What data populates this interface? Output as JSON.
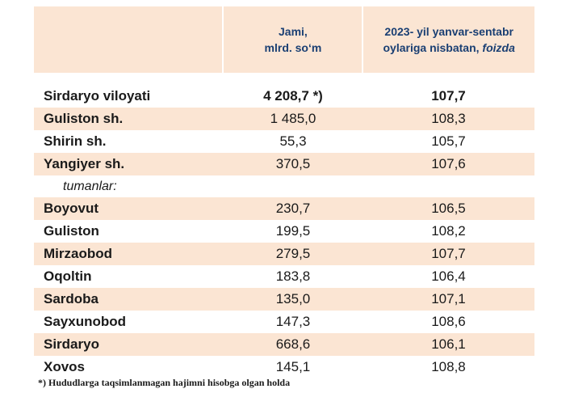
{
  "header": {
    "col2_line1": "Jami,",
    "col2_line2": "mlrd. so‘m",
    "col3_line1": "2023- yil yanvar-sentabr",
    "col3_line2_plain": "oylariga nisbatan, ",
    "col3_line2_italic": "foizda"
  },
  "rows": [
    {
      "name": "Sirdaryo viloyati",
      "total": "4 208,7 *)",
      "pct": "107,7"
    },
    {
      "name": "Guliston  sh.",
      "total": "1 485,0",
      "pct": "108,3"
    },
    {
      "name": "Shirin sh.",
      "total": "55,3",
      "pct": "105,7"
    },
    {
      "name": "Yangiyer sh.",
      "total": "370,5",
      "pct": "107,6"
    },
    {
      "name": "tumanlar:",
      "total": "",
      "pct": ""
    },
    {
      "name": "Boyovut",
      "total": "230,7",
      "pct": "106,5"
    },
    {
      "name": "Guliston",
      "total": "199,5",
      "pct": "108,2"
    },
    {
      "name": "Mirzaobod",
      "total": "279,5",
      "pct": "107,7"
    },
    {
      "name": "Oqoltin",
      "total": "183,8",
      "pct": "106,4"
    },
    {
      "name": "Sardoba",
      "total": "135,0",
      "pct": "107,1"
    },
    {
      "name": "Sayxunobod",
      "total": "147,3",
      "pct": "108,6"
    },
    {
      "name": "Sirdaryo",
      "total": "668,6",
      "pct": "106,1"
    },
    {
      "name": "Xovos",
      "total": "145,1",
      "pct": "108,8"
    }
  ],
  "footnote": "*) Hududlarga taqsimlanmagan hajimni hisobga olgan holda",
  "colors": {
    "header_fill": "#fbe5d3",
    "header_text": "#1a3f73",
    "row_shade": "#fbe5d3"
  }
}
